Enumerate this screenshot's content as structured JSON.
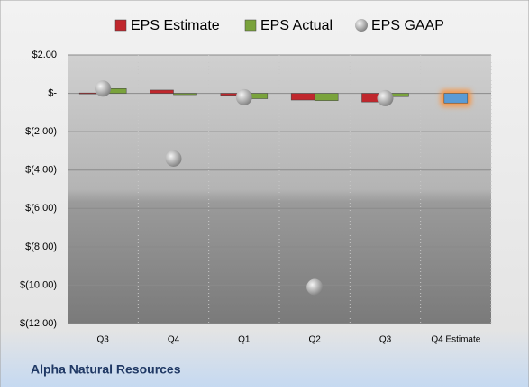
{
  "chart_data": {
    "type": "bar",
    "title": "Alpha Natural Resources",
    "categories": [
      "Q3",
      "Q4",
      "Q1",
      "Q2",
      "Q3",
      "Q4 Estimate"
    ],
    "series": [
      {
        "name": "EPS Estimate",
        "color": "#c0272d",
        "colors": [
          "#c0272d",
          "#c0272d",
          "#c0272d",
          "#c0272d",
          "#c0272d",
          "#5b9bd5"
        ],
        "values": [
          0.02,
          0.17,
          -0.1,
          -0.35,
          -0.45,
          -0.5
        ]
      },
      {
        "name": "EPS Actual",
        "color": "#7aa33c",
        "values": [
          0.25,
          -0.07,
          -0.28,
          -0.38,
          -0.17,
          null
        ]
      },
      {
        "name": "EPS GAAP",
        "type": "scatter",
        "color": "#a6a6a6",
        "values": [
          0.25,
          -3.4,
          -0.2,
          -10.1,
          -0.25,
          null
        ]
      }
    ],
    "ylim": [
      -12,
      2
    ],
    "yticks": [
      {
        "value": -12,
        "label": "$(12.00)"
      },
      {
        "value": -10,
        "label": "$(10.00)"
      },
      {
        "value": -8,
        "label": "$(8.00)"
      },
      {
        "value": -6,
        "label": "$(6.00)"
      },
      {
        "value": -4,
        "label": "$(4.00)"
      },
      {
        "value": -2,
        "label": "$(2.00)"
      },
      {
        "value": 0,
        "label": "$-"
      },
      {
        "value": 2,
        "label": "$2.00"
      }
    ],
    "grid": true,
    "legend": "top"
  }
}
